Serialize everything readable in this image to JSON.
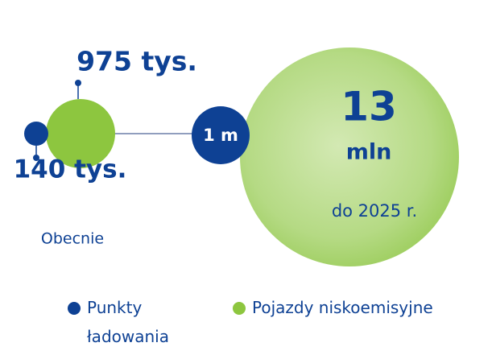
{
  "current": {
    "points_label": "140 tys.",
    "vehicles_label": "975 tys.",
    "caption": "Obecnie"
  },
  "future": {
    "points_label": "1 m",
    "vehicles_number": "13",
    "vehicles_unit": "mln",
    "caption": "do 2025 r."
  },
  "legend": [
    {
      "label": "Punkty ładowania",
      "color": "#0e4194"
    },
    {
      "label": "Pojazdy niskoemisyjne",
      "color": "#8dc63f"
    }
  ]
}
